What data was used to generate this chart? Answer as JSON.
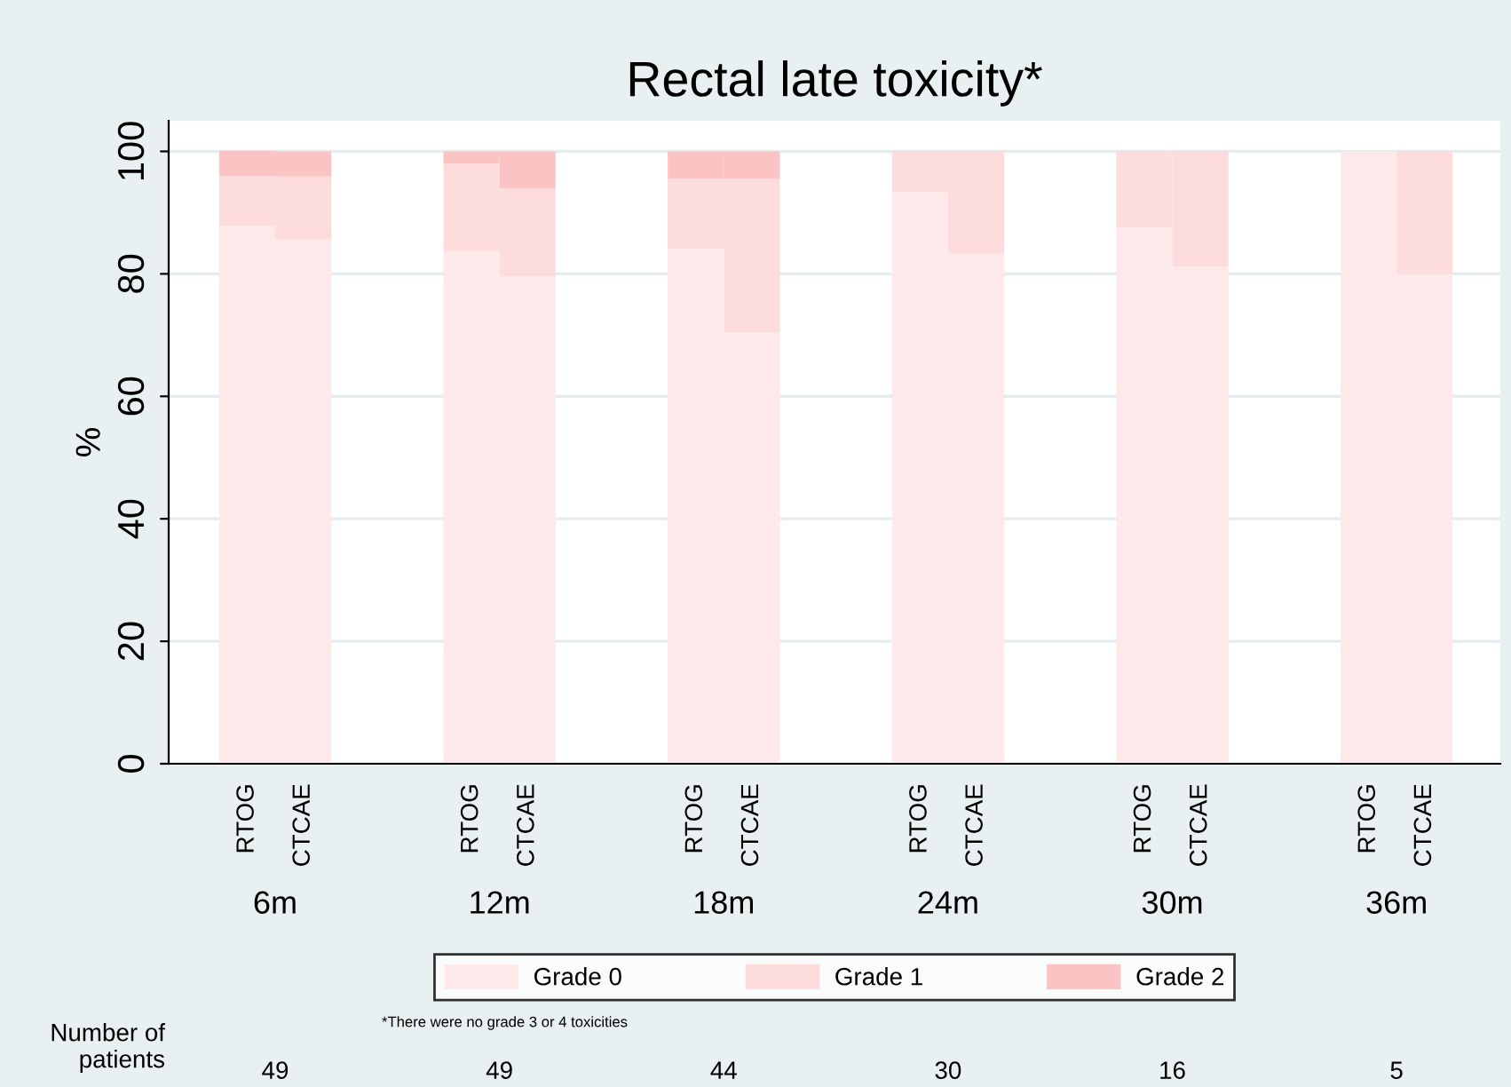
{
  "chart_data": {
    "type": "bar",
    "title": "Rectal late toxicity*",
    "ylabel": "%",
    "stacked": true,
    "categories": [
      "RTOG",
      "CTCAE",
      "RTOG",
      "CTCAE",
      "RTOG",
      "CTCAE",
      "RTOG",
      "CTCAE",
      "RTOG",
      "CTCAE",
      "RTOG",
      "CTCAE"
    ],
    "series": [
      {
        "name": "Grade 0",
        "color": "#fde9e9",
        "values": [
          87.8,
          85.7,
          83.7,
          79.6,
          84.1,
          70.5,
          93.3,
          83.3,
          87.5,
          81.2,
          100,
          80
        ]
      },
      {
        "name": "Grade 1",
        "color": "#fcdcdd",
        "values": [
          8.2,
          10.2,
          14.3,
          14.3,
          11.4,
          25.0,
          6.7,
          16.7,
          12.5,
          18.8,
          0,
          20
        ]
      },
      {
        "name": "Grade 2",
        "color": "#fbc3c4",
        "values": [
          4.1,
          4.1,
          2.0,
          6.1,
          4.5,
          4.5,
          0,
          0,
          0,
          0,
          0,
          0
        ]
      }
    ],
    "ylim": [
      0,
      105
    ],
    "yticks": [
      0,
      20,
      40,
      60,
      80,
      100
    ],
    "grid": "y",
    "legend": "bottom",
    "annotations": [
      "6m",
      "12m",
      "18m",
      "24m",
      "30m",
      "36m",
      "Number of\npatients",
      "49",
      "49",
      "44",
      "30",
      "16",
      "5",
      "*There were no grade 3 or 4 toxicities"
    ]
  }
}
